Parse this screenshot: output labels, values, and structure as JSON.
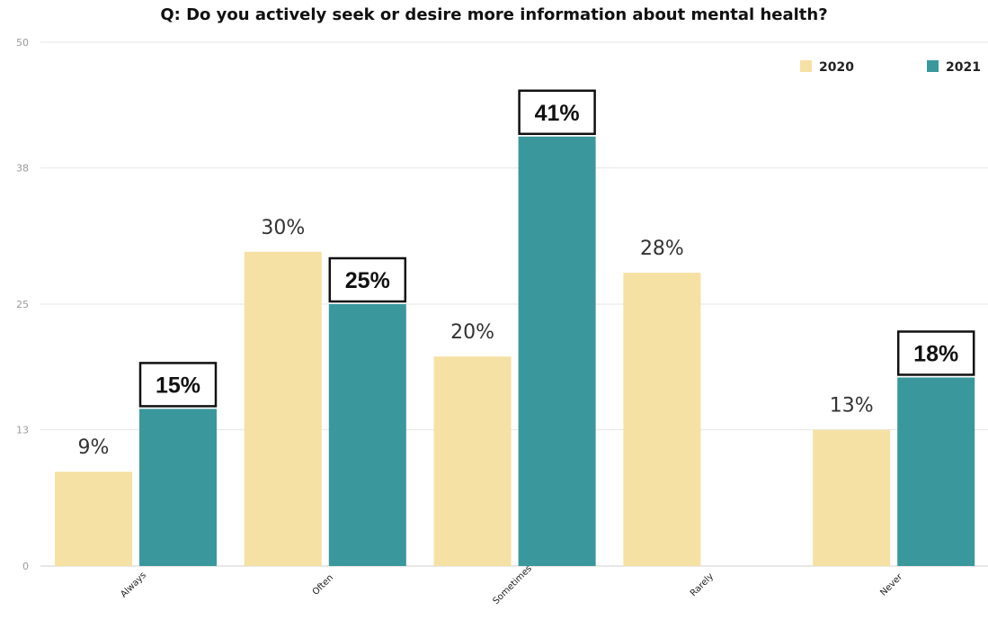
{
  "chart_data": {
    "type": "bar",
    "title": "Q: Do you actively seek or desire more information about mental health?",
    "categories": [
      "Always",
      "Often",
      "Sometimes",
      "Rarely",
      "Never"
    ],
    "series": [
      {
        "name": "2020",
        "values": [
          9,
          30,
          20,
          28,
          13
        ],
        "labels": [
          "9%",
          "30%",
          "20%",
          "28%",
          "13%"
        ]
      },
      {
        "name": "2021",
        "values": [
          15,
          25,
          41,
          null,
          18
        ],
        "labels": [
          "15%",
          "25%",
          "41%",
          "",
          "18%"
        ]
      }
    ],
    "y_ticks": [
      "0",
      "13",
      "25",
      "38",
      "50"
    ],
    "ylim": [
      0,
      50
    ],
    "grid": true,
    "legend": "top-right",
    "colors": {
      "2020": "#f5e1a4",
      "2021": "#3a979c"
    }
  }
}
